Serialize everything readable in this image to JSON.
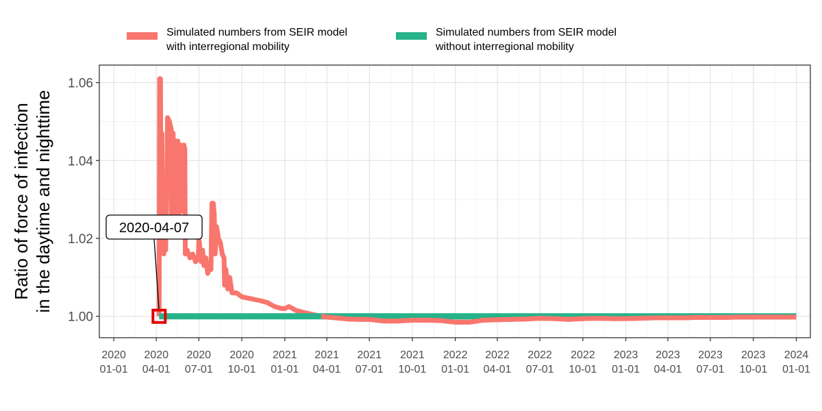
{
  "chart_data": {
    "type": "line",
    "ylabel": [
      "Ratio of force of infection",
      "in the daytime and nighttime"
    ],
    "xlabel": "",
    "ylim": [
      0.9945,
      1.0645
    ],
    "xlim": [
      "2019-12-01",
      "2024-01-31"
    ],
    "grid": true,
    "legend_position": "top",
    "y_ticks": [
      {
        "value": 1.0,
        "label": "1.00"
      },
      {
        "value": 1.02,
        "label": "1.02"
      },
      {
        "value": 1.04,
        "label": "1.04"
      },
      {
        "value": 1.06,
        "label": "1.06"
      }
    ],
    "x_ticks": [
      {
        "date": "2020-01-01",
        "line1": "2020",
        "line2": "01-01"
      },
      {
        "date": "2020-04-01",
        "line1": "2020",
        "line2": "04-01"
      },
      {
        "date": "2020-07-01",
        "line1": "2020",
        "line2": "07-01"
      },
      {
        "date": "2020-10-01",
        "line1": "2020",
        "line2": "10-01"
      },
      {
        "date": "2021-01-01",
        "line1": "2021",
        "line2": "01-01"
      },
      {
        "date": "2021-04-01",
        "line1": "2021",
        "line2": "04-01"
      },
      {
        "date": "2021-07-01",
        "line1": "2021",
        "line2": "07-01"
      },
      {
        "date": "2021-10-01",
        "line1": "2021",
        "line2": "10-01"
      },
      {
        "date": "2022-01-01",
        "line1": "2022",
        "line2": "01-01"
      },
      {
        "date": "2022-04-01",
        "line1": "2022",
        "line2": "04-01"
      },
      {
        "date": "2022-07-01",
        "line1": "2022",
        "line2": "07-01"
      },
      {
        "date": "2022-10-01",
        "line1": "2022",
        "line2": "10-01"
      },
      {
        "date": "2023-01-01",
        "line1": "2023",
        "line2": "01-01"
      },
      {
        "date": "2023-04-01",
        "line1": "2023",
        "line2": "04-01"
      },
      {
        "date": "2023-07-01",
        "line1": "2023",
        "line2": "07-01"
      },
      {
        "date": "2023-10-01",
        "line1": "2023",
        "line2": "10-01"
      },
      {
        "date": "2024-01-01",
        "line1": "2024",
        "line2": "01-01"
      }
    ],
    "series": [
      {
        "name": "Simulated numbers from SEIR model\nwith interregional mobility",
        "color": "#f8766d",
        "points": [
          [
            "2020-04-07",
            1.0
          ],
          [
            "2020-04-08",
            1.061
          ],
          [
            "2020-04-10",
            1.061
          ],
          [
            "2020-04-11",
            1.018
          ],
          [
            "2020-04-13",
            1.047
          ],
          [
            "2020-04-14",
            1.017
          ],
          [
            "2020-04-17",
            1.016
          ],
          [
            "2020-04-19",
            1.034
          ],
          [
            "2020-04-21",
            1.017
          ],
          [
            "2020-04-23",
            1.028
          ],
          [
            "2020-04-25",
            1.051
          ],
          [
            "2020-04-29",
            1.05
          ],
          [
            "2020-05-03",
            1.048
          ],
          [
            "2020-05-04",
            1.021
          ],
          [
            "2020-05-07",
            1.047
          ],
          [
            "2020-05-09",
            1.022
          ],
          [
            "2020-05-12",
            1.045
          ],
          [
            "2020-05-14",
            1.023
          ],
          [
            "2020-05-17",
            1.045
          ],
          [
            "2020-05-19",
            1.025
          ],
          [
            "2020-05-23",
            1.044
          ],
          [
            "2020-05-26",
            1.027
          ],
          [
            "2020-05-30",
            1.044
          ],
          [
            "2020-06-01",
            1.043
          ],
          [
            "2020-06-02",
            1.016
          ],
          [
            "2020-06-06",
            1.017
          ],
          [
            "2020-06-12",
            1.015
          ],
          [
            "2020-06-18",
            1.016
          ],
          [
            "2020-06-24",
            1.014
          ],
          [
            "2020-06-30",
            1.015
          ],
          [
            "2020-07-01",
            1.02
          ],
          [
            "2020-07-03",
            1.018
          ],
          [
            "2020-07-06",
            1.014
          ],
          [
            "2020-07-09",
            1.017
          ],
          [
            "2020-07-12",
            1.013
          ],
          [
            "2020-07-16",
            1.015
          ],
          [
            "2020-07-20",
            1.011
          ],
          [
            "2020-07-23",
            1.012
          ],
          [
            "2020-07-27",
            1.012
          ],
          [
            "2020-07-29",
            1.029
          ],
          [
            "2020-08-01",
            1.029
          ],
          [
            "2020-08-03",
            1.026
          ],
          [
            "2020-08-05",
            1.016
          ],
          [
            "2020-08-08",
            1.023
          ],
          [
            "2020-08-12",
            1.02
          ],
          [
            "2020-08-16",
            1.019
          ],
          [
            "2020-08-20",
            1.016
          ],
          [
            "2020-08-24",
            1.015
          ],
          [
            "2020-08-25",
            1.008
          ],
          [
            "2020-08-28",
            1.012
          ],
          [
            "2020-09-01",
            1.007
          ],
          [
            "2020-09-05",
            1.01
          ],
          [
            "2020-09-10",
            1.006
          ],
          [
            "2020-09-20",
            1.006
          ],
          [
            "2020-10-01",
            1.005
          ],
          [
            "2020-10-20",
            1.0045
          ],
          [
            "2020-11-10",
            1.004
          ],
          [
            "2020-11-25",
            1.0035
          ],
          [
            "2020-12-10",
            1.0025
          ],
          [
            "2020-12-25",
            1.002
          ],
          [
            "2021-01-01",
            1.002
          ],
          [
            "2021-01-10",
            1.0025
          ],
          [
            "2021-01-25",
            1.0015
          ],
          [
            "2021-02-10",
            1.001
          ],
          [
            "2021-03-01",
            1.0005
          ],
          [
            "2021-03-20",
            1.0
          ],
          [
            "2021-04-01",
            0.9998
          ],
          [
            "2021-04-20",
            0.9996
          ],
          [
            "2021-05-15",
            0.9993
          ],
          [
            "2021-06-10",
            0.9992
          ],
          [
            "2021-07-01",
            0.9992
          ],
          [
            "2021-08-01",
            0.9988
          ],
          [
            "2021-09-01",
            0.9988
          ],
          [
            "2021-10-01",
            0.999
          ],
          [
            "2021-11-01",
            0.999
          ],
          [
            "2021-12-01",
            0.9989
          ],
          [
            "2022-01-01",
            0.9985
          ],
          [
            "2022-02-01",
            0.9985
          ],
          [
            "2022-03-01",
            0.999
          ],
          [
            "2022-04-01",
            0.9991
          ],
          [
            "2022-05-01",
            0.9992
          ],
          [
            "2022-06-01",
            0.9993
          ],
          [
            "2022-07-01",
            0.9995
          ],
          [
            "2022-08-01",
            0.9994
          ],
          [
            "2022-09-01",
            0.9992
          ],
          [
            "2022-10-01",
            0.9994
          ],
          [
            "2022-11-01",
            0.9995
          ],
          [
            "2022-12-01",
            0.9994
          ],
          [
            "2023-01-01",
            0.9994
          ],
          [
            "2023-02-01",
            0.9995
          ],
          [
            "2023-03-01",
            0.9996
          ],
          [
            "2023-04-01",
            0.9996
          ],
          [
            "2023-05-01",
            0.9996
          ],
          [
            "2023-06-01",
            0.9997
          ],
          [
            "2023-07-01",
            0.9997
          ],
          [
            "2023-08-01",
            0.9997
          ],
          [
            "2023-09-01",
            0.9998
          ],
          [
            "2023-10-01",
            0.9998
          ],
          [
            "2023-11-01",
            0.9998
          ],
          [
            "2023-12-01",
            0.9998
          ],
          [
            "2024-01-01",
            0.9998
          ]
        ]
      },
      {
        "name": "Simulated numbers from SEIR model\nwithout interregional mobility",
        "color": "#26b38a",
        "points": [
          [
            "2020-04-07",
            1.0
          ],
          [
            "2024-01-01",
            1.0
          ]
        ]
      }
    ],
    "annotation": {
      "label": "2020-04-07",
      "date": "2020-04-07",
      "value": 1.0,
      "marker_color": "#e00000"
    }
  }
}
